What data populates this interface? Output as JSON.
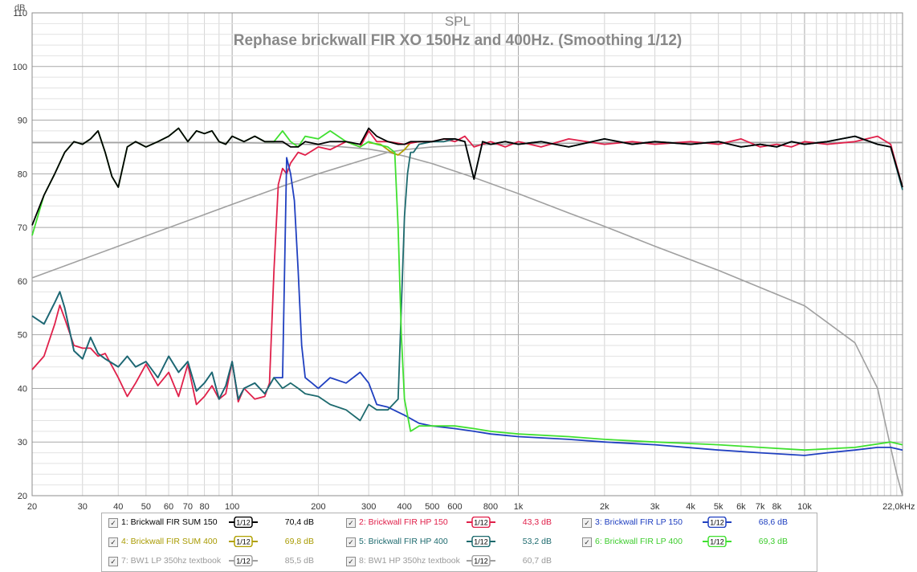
{
  "chart_data": {
    "type": "line",
    "title": "SPL",
    "subtitle": "Rephase brickwall FIR XO 150Hz and 400Hz. (Smoothing 1/12)",
    "ylabel": "dB",
    "xunit": "Hz",
    "xscale": "log",
    "xlim": [
      20,
      22000
    ],
    "ylim": [
      20,
      110
    ],
    "yticks": [
      "110",
      "100",
      "90",
      "80",
      "70",
      "60",
      "50",
      "40",
      "30",
      "20"
    ],
    "yticks_values": [
      110,
      100,
      90,
      80,
      70,
      60,
      50,
      40,
      30,
      20
    ],
    "xticks": [
      "20",
      "30",
      "40",
      "50",
      "60",
      "70",
      "80",
      "100",
      "200",
      "300",
      "400",
      "500",
      "600",
      "800",
      "1k",
      "2k",
      "3k",
      "4k",
      "5k",
      "6k",
      "7k",
      "8k",
      "10k",
      "22,0k"
    ],
    "xticks_values": [
      20,
      30,
      40,
      50,
      60,
      70,
      80,
      100,
      200,
      300,
      400,
      500,
      600,
      800,
      1000,
      2000,
      3000,
      4000,
      5000,
      6000,
      7000,
      8000,
      10000,
      22000
    ],
    "grid": true,
    "series": [
      {
        "name": "BW1 LP 350hz textbook",
        "color": "#a0a0a0",
        "x": [
          20,
          50,
          100,
          150,
          200,
          300,
          350,
          400,
          500,
          700,
          1000,
          1500,
          2000,
          3000,
          5000,
          7000,
          10000,
          15000,
          18000,
          20000,
          21000,
          22000
        ],
        "y": [
          85.8,
          85.8,
          85.8,
          85.7,
          85.4,
          84.6,
          84.0,
          83.3,
          81.9,
          79.3,
          76.3,
          72.7,
          70.2,
          66.5,
          62.0,
          58.8,
          55.4,
          48.5,
          40.0,
          29.0,
          24.0,
          20.0
        ]
      },
      {
        "name": "BW1 HP 350hz textbook",
        "color": "#a0a0a0",
        "x": [
          20,
          50,
          100,
          150,
          200,
          300,
          350,
          400,
          500,
          700,
          1000,
          1500,
          2000,
          3000,
          5000,
          10000,
          22000
        ],
        "y": [
          60.6,
          68.4,
          74.3,
          77.7,
          80.0,
          82.9,
          84.0,
          84.5,
          85.0,
          85.4,
          85.6,
          85.7,
          85.8,
          85.8,
          85.8,
          85.8,
          85.8
        ]
      },
      {
        "name": "Brickwall FIR SUM 400",
        "color": "#b0a000",
        "x": [
          300,
          330,
          360,
          380,
          400,
          420,
          450
        ],
        "y": [
          85.8,
          85.5,
          84.0,
          83.5,
          84.5,
          85.8,
          86.0
        ]
      },
      {
        "name": "Brickwall FIR HP 150",
        "color": "#e0204a",
        "x": [
          20,
          22,
          24,
          25,
          26,
          28,
          30,
          32,
          34,
          36,
          40,
          43,
          46,
          50,
          55,
          60,
          65,
          70,
          75,
          80,
          85,
          90,
          95,
          100,
          105,
          110,
          120,
          130,
          135,
          140,
          145,
          150,
          155,
          160,
          170,
          180,
          200,
          220,
          250,
          280,
          300,
          320,
          350,
          400,
          450,
          500,
          550,
          600,
          650,
          700,
          800,
          900,
          1000,
          1200,
          1500,
          2000,
          2500,
          3000,
          4000,
          5000,
          6000,
          7000,
          8000,
          9000,
          10000,
          12000,
          15000,
          18000,
          20000,
          22000
        ],
        "y": [
          43.5,
          46,
          52,
          55.5,
          53,
          48,
          47.5,
          47.5,
          46,
          46.5,
          42,
          38.5,
          41,
          44.5,
          40.5,
          43,
          38.5,
          44.5,
          37,
          38.5,
          40.5,
          38,
          39,
          45,
          37.5,
          40,
          38,
          38.5,
          41,
          62,
          78,
          81,
          80,
          82,
          84,
          83.5,
          85,
          84.5,
          86,
          85,
          88,
          86,
          86,
          85.5,
          86,
          86,
          86.5,
          86,
          87,
          85,
          86,
          85,
          86,
          85,
          86.5,
          85.5,
          86,
          85.5,
          86,
          85.5,
          86.5,
          85,
          85.5,
          85,
          86,
          85.5,
          86,
          87,
          85.5,
          77.5
        ]
      },
      {
        "name": "Brickwall FIR LP 150",
        "color": "#2040c0",
        "x": [
          20,
          22,
          24,
          25,
          26,
          28,
          30,
          32,
          34,
          36,
          40,
          43,
          46,
          50,
          55,
          60,
          65,
          70,
          75,
          80,
          85,
          90,
          95,
          100,
          105,
          110,
          120,
          130,
          140,
          150,
          155,
          160,
          165,
          170,
          175,
          180,
          190,
          200,
          220,
          250,
          280,
          300,
          320,
          350,
          400,
          450,
          500,
          600,
          700,
          800,
          1000,
          1500,
          2000,
          3000,
          5000,
          7000,
          10000,
          12000,
          15000,
          18000,
          20000,
          22000
        ],
        "y": [
          53.5,
          52,
          56,
          58,
          55,
          47,
          45.5,
          49.5,
          46.5,
          45.5,
          44,
          46,
          44,
          45,
          42,
          46,
          43,
          45,
          39.5,
          41,
          43,
          38,
          40.5,
          45,
          38,
          40,
          41,
          39,
          42,
          42,
          83,
          80,
          75,
          62,
          48,
          42,
          41,
          40,
          42,
          41,
          43,
          41,
          37,
          36.5,
          35,
          33.5,
          33,
          32.5,
          32,
          31.5,
          31,
          30.5,
          30,
          29.5,
          28.5,
          28,
          27.5,
          28,
          28.5,
          29,
          29,
          28.5
        ]
      },
      {
        "name": "Brickwall FIR HP 400",
        "color": "#1d6a6e",
        "x": [
          20,
          22,
          24,
          25,
          26,
          28,
          30,
          32,
          34,
          36,
          40,
          43,
          46,
          50,
          55,
          60,
          65,
          70,
          75,
          80,
          85,
          90,
          95,
          100,
          105,
          110,
          120,
          130,
          140,
          150,
          160,
          170,
          180,
          200,
          220,
          250,
          280,
          300,
          320,
          350,
          380,
          390,
          400,
          410,
          420,
          430,
          450,
          500,
          550,
          600,
          650,
          700,
          750,
          800,
          900,
          1000,
          1200,
          1500,
          2000,
          2500,
          3000,
          4000,
          5000,
          6000,
          7000,
          8000,
          9000,
          10000,
          12000,
          15000,
          18000,
          20000,
          22000
        ],
        "y": [
          53.5,
          52,
          56,
          58,
          55,
          47,
          45.5,
          49.5,
          46.5,
          45.5,
          44,
          46,
          44,
          45,
          42,
          46,
          43,
          45,
          39.5,
          41,
          43,
          38,
          40.5,
          45,
          38,
          40,
          41,
          39,
          42,
          40,
          41,
          40,
          39,
          38.5,
          37,
          36,
          34,
          37,
          36,
          36,
          38,
          55,
          72,
          80,
          84,
          84,
          85.5,
          86,
          86,
          86.5,
          86,
          79,
          86,
          85.5,
          86,
          85.5,
          86,
          85,
          86.5,
          85.5,
          86,
          85.5,
          86,
          85,
          85.5,
          85,
          86,
          85.5,
          86,
          87,
          85.5,
          85,
          77
        ]
      },
      {
        "name": "Brickwall FIR LP 400",
        "color": "#40e030",
        "x": [
          20,
          22,
          24,
          26,
          28,
          30,
          32,
          34,
          36,
          38,
          40,
          43,
          46,
          50,
          55,
          60,
          65,
          70,
          75,
          80,
          85,
          90,
          95,
          100,
          110,
          120,
          130,
          140,
          150,
          160,
          170,
          180,
          200,
          220,
          250,
          280,
          300,
          320,
          350,
          370,
          380,
          390,
          400,
          420,
          450,
          500,
          600,
          700,
          800,
          1000,
          1500,
          2000,
          3000,
          5000,
          7000,
          10000,
          15000,
          20000,
          22000
        ],
        "y": [
          68.5,
          76,
          80,
          84,
          86,
          85.5,
          86.5,
          88,
          84,
          79.5,
          77.5,
          85,
          86,
          85,
          86,
          87,
          88.5,
          86,
          88,
          87.5,
          88,
          86,
          85.5,
          87,
          86,
          87,
          86,
          86,
          88,
          86,
          85,
          87,
          86.5,
          88,
          86,
          85,
          86,
          85.5,
          85,
          84,
          70,
          50,
          38,
          32,
          33,
          33,
          33,
          32.5,
          32,
          31.5,
          31,
          30.5,
          30,
          29.5,
          29,
          28.5,
          29,
          30,
          29.5
        ]
      },
      {
        "name": "Brickwall FIR SUM 150",
        "color": "#000000",
        "x": [
          20,
          22,
          24,
          26,
          28,
          30,
          32,
          34,
          36,
          38,
          40,
          43,
          46,
          50,
          55,
          60,
          65,
          70,
          75,
          80,
          85,
          90,
          95,
          100,
          110,
          120,
          130,
          140,
          150,
          160,
          170,
          180,
          200,
          220,
          250,
          280,
          300,
          320,
          350,
          380,
          400,
          420,
          450,
          500,
          550,
          600,
          650,
          700,
          750,
          800,
          900,
          1000,
          1200,
          1500,
          2000,
          2500,
          3000,
          4000,
          5000,
          6000,
          7000,
          8000,
          9000,
          10000,
          12000,
          15000,
          18000,
          20000,
          22000
        ],
        "y": [
          70.4,
          76,
          80,
          84,
          86,
          85.5,
          86.5,
          88,
          84,
          79.5,
          77.5,
          85,
          86,
          85,
          86,
          87,
          88.5,
          86,
          88,
          87.5,
          88,
          86,
          85.5,
          87,
          86,
          87,
          86,
          86,
          86,
          85,
          85,
          86,
          85.5,
          86,
          86,
          85.5,
          88.5,
          87,
          86,
          85.5,
          85.5,
          86,
          86,
          86,
          86.5,
          86.5,
          86,
          79,
          86,
          85.5,
          86,
          85.5,
          86,
          85,
          86.5,
          85.5,
          86,
          85.5,
          86,
          85,
          85.5,
          85,
          86,
          85.5,
          86,
          87,
          85.5,
          85,
          77.5
        ]
      }
    ]
  },
  "legend": [
    {
      "label": "1: Brickwall FIR SUM 150",
      "value": "70,4 dB",
      "color": "#000000",
      "text_color": "#000000",
      "checked": true,
      "smoothing": "1/12"
    },
    {
      "label": "2: Brickwall FIR HP 150",
      "value": "43,3 dB",
      "color": "#e0204a",
      "text_color": "#e0204a",
      "checked": true,
      "smoothing": "1/12"
    },
    {
      "label": "3: Brickwall FIR LP 150",
      "value": "68,6 dB",
      "color": "#2040c0",
      "text_color": "#2040c0",
      "checked": true,
      "smoothing": "1/12"
    },
    {
      "label": "4: Brickwall FIR SUM 400",
      "value": "69,8 dB",
      "color": "#b0a000",
      "text_color": "#a89a00",
      "checked": true,
      "smoothing": "1/12"
    },
    {
      "label": "5: Brickwall FIR HP 400",
      "value": "53,2 dB",
      "color": "#1d6a6e",
      "text_color": "#1d6a6e",
      "checked": true,
      "smoothing": "1/12"
    },
    {
      "label": "6: Brickwall FIR LP 400",
      "value": "69,3 dB",
      "color": "#40e030",
      "text_color": "#3ccc2c",
      "checked": true,
      "smoothing": "1/12"
    },
    {
      "label": "7: BW1 LP 350hz textbook",
      "value": "85,5 dB",
      "color": "#a0a0a0",
      "text_color": "#9a9a9a",
      "checked": true,
      "smoothing": "1/12"
    },
    {
      "label": "8: BW1 HP 350hz textbook",
      "value": "60,7 dB",
      "color": "#a0a0a0",
      "text_color": "#9a9a9a",
      "checked": true,
      "smoothing": "1/12"
    }
  ],
  "icons": {
    "checkbox": "checkmark-icon",
    "smoothing_swatch": "smoothing-swatch-icon"
  }
}
